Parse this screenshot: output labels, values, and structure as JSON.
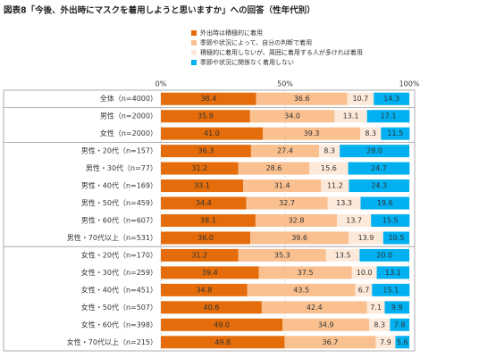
{
  "chart_data": {
    "type": "stacked-barh",
    "title": "図表8「今後、外出時にマスクを着用しようと思いますか」への回答（性年代別）",
    "categories": [
      "全体（n=4000）",
      "男性（n=2000）",
      "女性（n=2000）",
      "男性・20代（n=157）",
      "男性・30代（n=77）",
      "男性・40代（n=169）",
      "男性・50代（n=459）",
      "男性・60代（n=607）",
      "男性・70代以上（n=531）",
      "女性・20代（n=170）",
      "女性・30代（n=259）",
      "女性・40代（n=451）",
      "女性・50代（n=507）",
      "女性・60代（n=398）",
      "女性・70代以上（n=215）"
    ],
    "series": [
      {
        "name": "外出時は積極的に着用",
        "color": "#e46c0a",
        "label_color": "#ffffff",
        "values": [
          38.4,
          35.9,
          41.0,
          36.3,
          31.2,
          33.1,
          34.4,
          38.1,
          36.0,
          31.2,
          39.4,
          34.8,
          40.6,
          49.0,
          49.8
        ],
        "value_labels": [
          "38.4",
          "35.9",
          "41.0",
          "36.3",
          "31.2",
          "33.1",
          "34.4",
          "38.1",
          "36.0",
          "31.2",
          "39.4",
          "34.8",
          "40.6",
          "49.0",
          "49.8"
        ]
      },
      {
        "name": "季節や状況によって、自分の判断で着用",
        "color": "#fac090",
        "label_color": "#333333",
        "values": [
          36.6,
          34.0,
          39.3,
          27.4,
          28.6,
          31.4,
          32.7,
          32.8,
          39.6,
          35.3,
          37.5,
          43.5,
          42.4,
          34.9,
          36.7
        ],
        "value_labels": [
          "36.6",
          "34.0",
          "39.3",
          "27.4",
          "28.6",
          "31.4",
          "32.7",
          "32.8",
          "39.6",
          "35.3",
          "37.5",
          "43.5",
          "42.4",
          "34.9",
          "36.7"
        ]
      },
      {
        "name": "積極的に着用しないが、周囲に着用する人が多ければ着用",
        "color": "#fde9d9",
        "label_color": "#333333",
        "values": [
          10.7,
          13.1,
          8.3,
          8.3,
          15.6,
          11.2,
          13.3,
          13.7,
          13.9,
          13.5,
          10.0,
          6.7,
          7.1,
          8.3,
          7.9
        ],
        "value_labels": [
          "10.7",
          "13.1",
          "8.3",
          "8.3",
          "15.6",
          "11.2",
          "13.3",
          "13.7",
          "13.9",
          "13.5",
          "10.0",
          "6.7",
          "7.1",
          "8.3",
          "7.9"
        ]
      },
      {
        "name": "季節や状況に関係なく着用しない",
        "color": "#00b0f0",
        "label_color": "#ffffff",
        "values": [
          14.3,
          17.1,
          11.5,
          28.0,
          24.7,
          24.3,
          19.6,
          15.5,
          10.5,
          20.0,
          13.1,
          15.1,
          9.9,
          7.8,
          5.6
        ],
        "value_labels": [
          "14.3",
          "17.1",
          "11.5",
          "28.0",
          "24.7",
          "24.3",
          "19.6",
          "15.5",
          "10.5",
          "20.0",
          "13.1",
          "15.1",
          "9.9",
          "7.8",
          "5.6"
        ]
      }
    ],
    "xlim": [
      0,
      100
    ],
    "xticks": [
      {
        "value": 0,
        "label": "0%"
      },
      {
        "value": 50,
        "label": "50%"
      },
      {
        "value": 100,
        "label": "100%"
      }
    ],
    "grid": true
  }
}
